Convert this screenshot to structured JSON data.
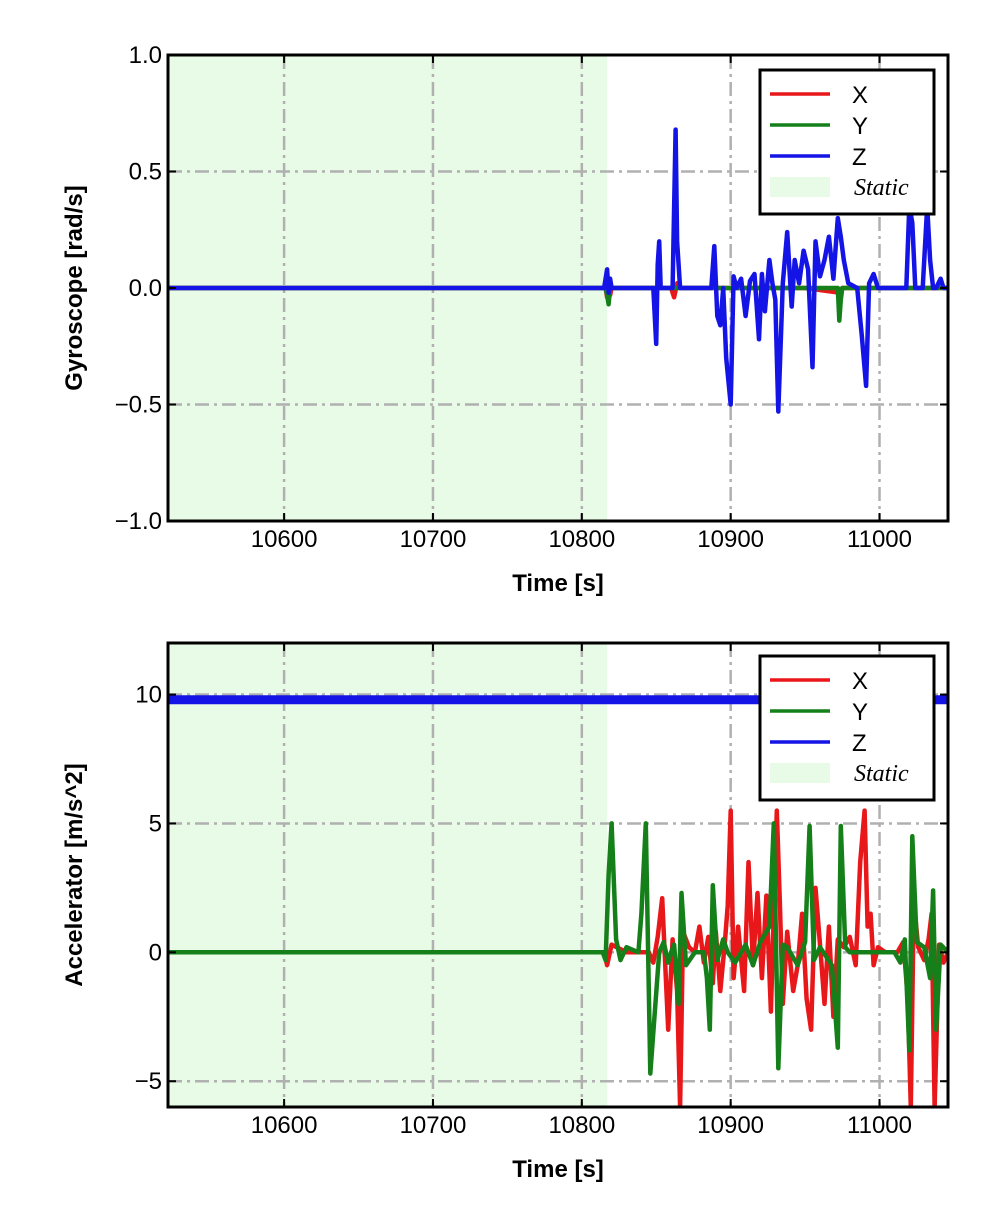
{
  "chart_data": [
    {
      "type": "line",
      "xlabel": "Time [s]",
      "ylabel": "Gyroscope [rad/s]",
      "xlim": [
        10522,
        11046
      ],
      "ylim": [
        -1.0,
        1.0
      ],
      "xticks": [
        10600,
        10700,
        10800,
        10900,
        11000
      ],
      "yticks": [
        -1.0,
        -0.5,
        0.0,
        0.5,
        1.0
      ],
      "ytick_labels": [
        "−1.0",
        "−0.5",
        "0.0",
        "0.5",
        "1.0"
      ],
      "grid": true,
      "legend_position": "top-right",
      "static_region": {
        "x_start": 10522,
        "x_end": 10817,
        "label": "Static",
        "color": "#e8fbe6"
      },
      "series": [
        {
          "name": "X",
          "color": "#e8171a",
          "x": [
            10522,
            10816,
            10817,
            10818,
            10819,
            10820,
            10860,
            10862,
            10864,
            10866,
            10900,
            10950,
            10973,
            10975,
            10990,
            11000,
            11046
          ],
          "y": [
            0,
            0,
            -0.04,
            0.04,
            -0.03,
            0,
            0,
            -0.04,
            0.02,
            0,
            0,
            0,
            -0.02,
            0,
            0,
            0,
            0
          ]
        },
        {
          "name": "Y",
          "color": "#15801a",
          "x": [
            10522,
            10816,
            10817,
            10818,
            10819,
            10820,
            10850,
            10860,
            10900,
            10950,
            10972,
            10973,
            10974,
            10975,
            11000,
            11046
          ],
          "y": [
            0,
            0,
            -0.03,
            -0.07,
            0,
            0,
            0,
            0,
            0,
            0,
            0,
            -0.14,
            -0.05,
            0,
            0,
            0
          ]
        },
        {
          "name": "Z",
          "color": "#1414e6",
          "x": [
            10522,
            10815,
            10817,
            10818,
            10819,
            10820,
            10848,
            10850,
            10851,
            10852,
            10853,
            10856,
            10861,
            10863,
            10864,
            10866,
            10870,
            10887,
            10889,
            10891,
            10893,
            10895,
            10897,
            10900,
            10902,
            10904,
            10907,
            10910,
            10913,
            10916,
            10919,
            10921,
            10923,
            10926,
            10928,
            10930,
            10932,
            10935,
            10938,
            10941,
            10943,
            10946,
            10949,
            10952,
            10955,
            10957,
            10960,
            10963,
            10966,
            10969,
            10972,
            10974,
            10976,
            10979,
            10985,
            10988,
            10991,
            10993,
            10996,
            10999,
            11003,
            11015,
            11018,
            11020,
            11022,
            11024,
            11029,
            11032,
            11034,
            11036,
            11038,
            11041,
            11043,
            11046
          ],
          "y": [
            0,
            0,
            0.08,
            -0.02,
            0.04,
            0,
            0,
            -0.24,
            0.1,
            0.2,
            0,
            0,
            0,
            0.68,
            0.2,
            0,
            0,
            0,
            0.18,
            -0.12,
            -0.16,
            0,
            -0.3,
            -0.5,
            0.05,
            0,
            0.04,
            -0.12,
            0.03,
            0.06,
            -0.22,
            0.06,
            -0.1,
            0.12,
            0.02,
            -0.05,
            -0.53,
            0.02,
            0.24,
            -0.08,
            0.12,
            0.02,
            0.16,
            0.08,
            -0.34,
            0.2,
            0.05,
            0.12,
            0.22,
            0.04,
            0.3,
            0.22,
            0.12,
            0.02,
            0,
            -0.2,
            -0.42,
            0.02,
            0.06,
            0,
            0,
            0,
            0,
            0.35,
            0.28,
            0,
            0,
            0.35,
            0.12,
            0,
            0,
            0.04,
            0,
            0
          ]
        }
      ]
    },
    {
      "type": "line",
      "xlabel": "Time [s]",
      "ylabel": "Accelerator [m/s^2]",
      "xlim": [
        10522,
        11046
      ],
      "ylim": [
        -6.0,
        12.0
      ],
      "xticks": [
        10600,
        10700,
        10800,
        10900,
        11000
      ],
      "yticks": [
        -5,
        0,
        5,
        10
      ],
      "ytick_labels": [
        "−5",
        "0",
        "5",
        "10"
      ],
      "grid": true,
      "legend_position": "top-right",
      "static_region": {
        "x_start": 10522,
        "x_end": 10817,
        "label": "Static",
        "color": "#e8fbe6"
      },
      "series": [
        {
          "name": "X",
          "color": "#e8171a",
          "x": [
            10522,
            10815,
            10817,
            10820,
            10830,
            10845,
            10848,
            10851,
            10854,
            10858,
            10861,
            10864,
            10866,
            10868,
            10872,
            10876,
            10879,
            10882,
            10885,
            10888,
            10890,
            10893,
            10896,
            10898,
            10900,
            10902,
            10905,
            10909,
            10912,
            10915,
            10918,
            10921,
            10924,
            10927,
            10931,
            10933,
            10935,
            10938,
            10942,
            10945,
            10948,
            10951,
            10954,
            10957,
            10960,
            10963,
            10966,
            10969,
            10972,
            10976,
            10980,
            10984,
            10987,
            10990,
            10992,
            10994,
            10996,
            10999,
            11004,
            11012,
            11016,
            11019,
            11021,
            11023,
            11026,
            11030,
            11033,
            11035,
            11037,
            11040,
            11043,
            11046
          ],
          "y": [
            0,
            0,
            -0.5,
            0.3,
            0,
            0,
            -0.4,
            0.6,
            2.1,
            -3.0,
            0.5,
            -1.5,
            -6.0,
            0.8,
            0.2,
            0,
            1.0,
            -0.4,
            0.6,
            -1.2,
            0.8,
            -1.5,
            0.3,
            1.8,
            5.5,
            -1.0,
            1.0,
            -1.5,
            3.5,
            -0.5,
            2.3,
            -1.0,
            2.2,
            -2.3,
            5.5,
            2.0,
            -2.0,
            0.8,
            -1.5,
            -0.5,
            1.5,
            -1.8,
            -3.0,
            2.5,
            0.3,
            -2.0,
            1.0,
            -2.5,
            0.5,
            0.2,
            0.6,
            -0.5,
            3.5,
            5.5,
            1.0,
            1.5,
            -0.5,
            0.2,
            0,
            0,
            0.4,
            -1.8,
            -6.0,
            2.0,
            0.2,
            -0.3,
            0.5,
            1.5,
            -6.0,
            0.3,
            -0.4,
            0
          ]
        },
        {
          "name": "Y",
          "color": "#15801a",
          "x": [
            10522,
            10814,
            10816,
            10818,
            10820,
            10823,
            10826,
            10830,
            10838,
            10840,
            10843,
            10846,
            10852,
            10855,
            10858,
            10860,
            10862,
            10865,
            10867,
            10870,
            10876,
            10882,
            10884,
            10886,
            10888,
            10891,
            10895,
            10898,
            10903,
            10910,
            10915,
            10920,
            10926,
            10929,
            10932,
            10935,
            10938,
            10945,
            10950,
            10953,
            10956,
            10960,
            10968,
            10972,
            10974,
            10977,
            10980,
            10990,
            11000,
            11010,
            11014,
            11017,
            11020,
            11022,
            11025,
            11030,
            11034,
            11036,
            11038,
            11041,
            11046
          ],
          "y": [
            0,
            0,
            -0.3,
            3.0,
            5.0,
            0.5,
            -0.3,
            0.2,
            0,
            1.5,
            5.0,
            -4.7,
            0,
            0.4,
            -0.4,
            0,
            0.3,
            -2.0,
            2.3,
            -0.5,
            0,
            0,
            -1.0,
            -3.0,
            2.6,
            -0.3,
            0.5,
            0,
            -0.4,
            0.3,
            -0.5,
            0.4,
            1.0,
            5.0,
            -4.5,
            0.3,
            0.2,
            -0.5,
            0.4,
            4.9,
            -0.3,
            0.2,
            -0.5,
            -3.7,
            4.9,
            0.2,
            0,
            0,
            0,
            0,
            -0.4,
            0.5,
            -3.8,
            4.5,
            0.4,
            0.2,
            -1.0,
            2.4,
            -3.0,
            0.3,
            0
          ]
        },
        {
          "name": "Z",
          "color": "#1414e6",
          "x": [
            10522,
            11046
          ],
          "y": [
            9.8,
            9.8
          ]
        }
      ]
    }
  ]
}
